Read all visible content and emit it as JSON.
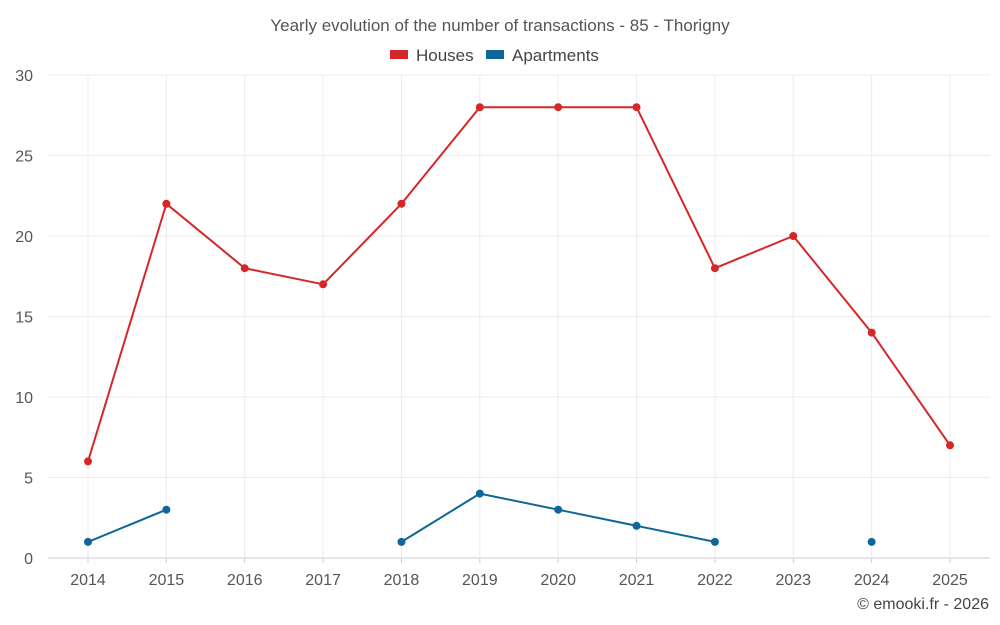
{
  "chart_data": {
    "type": "line",
    "title": "Yearly evolution of the number of transactions - 85 - Thorigny",
    "categories": [
      "2014",
      "2015",
      "2016",
      "2017",
      "2018",
      "2019",
      "2020",
      "2021",
      "2022",
      "2023",
      "2024",
      "2025"
    ],
    "series": [
      {
        "name": "Houses",
        "color": "#d62728",
        "values": [
          6,
          22,
          18,
          17,
          22,
          28,
          28,
          28,
          18,
          20,
          14,
          7
        ]
      },
      {
        "name": "Apartments",
        "color": "#0e6699",
        "values": [
          1,
          3,
          null,
          null,
          1,
          4,
          3,
          2,
          1,
          null,
          1,
          null
        ]
      }
    ],
    "ylim": [
      0,
      30
    ],
    "yticks": [
      0,
      5,
      10,
      15,
      20,
      25,
      30
    ],
    "xlabel": "",
    "ylabel": "",
    "legend_position": "top-center",
    "grid": true
  },
  "credit": "© emooki.fr - 2026"
}
